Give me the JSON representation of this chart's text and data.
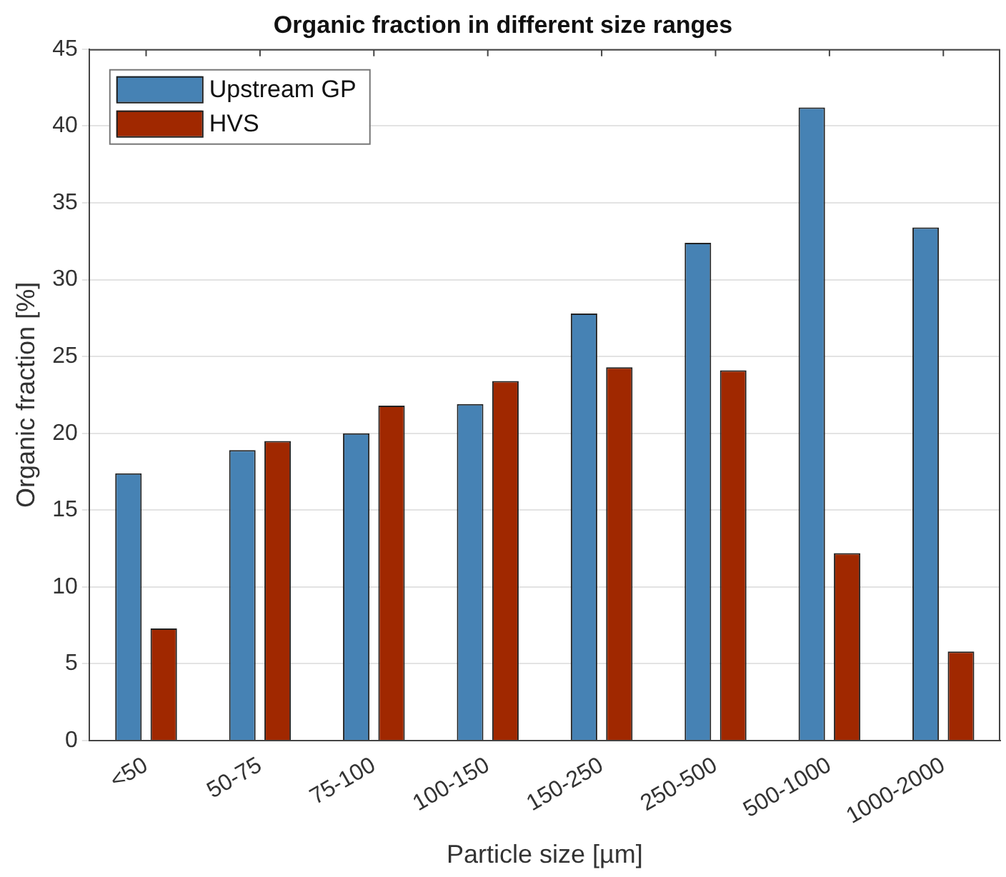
{
  "chart_data": {
    "type": "bar",
    "title": "Organic fraction in different size ranges",
    "xlabel": "Particle size [µm]",
    "ylabel": "Organic fraction [%]",
    "categories": [
      "<50",
      "50-75",
      "75-100",
      "100-150",
      "150-250",
      "250-500",
      "500-1000",
      "1000-2000"
    ],
    "series": [
      {
        "name": "Upstream GP",
        "color": "#4682b4",
        "values": [
          17.4,
          18.9,
          20.0,
          21.9,
          27.8,
          32.4,
          41.2,
          33.4
        ]
      },
      {
        "name": "HVS",
        "color": "#a02800",
        "values": [
          7.3,
          19.5,
          21.8,
          23.4,
          24.3,
          24.1,
          12.2,
          5.8
        ]
      }
    ],
    "ylim": [
      0,
      45
    ],
    "yticks": [
      0,
      5,
      10,
      15,
      20,
      25,
      30,
      35,
      40,
      45
    ],
    "grid": "y",
    "legend": "top left"
  }
}
